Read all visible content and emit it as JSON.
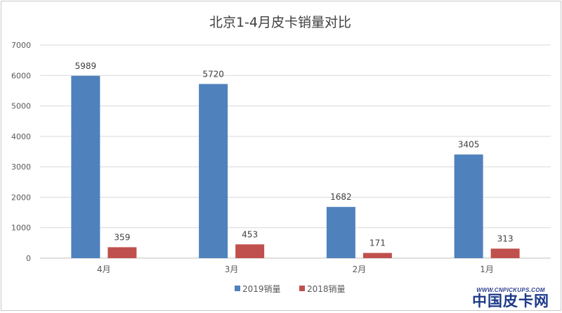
{
  "chart_data": {
    "type": "bar",
    "title": "北京1-4月皮卡销量对比",
    "categories": [
      "4月",
      "3月",
      "2月",
      "1月"
    ],
    "series": [
      {
        "name": "2019销量",
        "color": "#4f81bd",
        "values": [
          5989,
          5720,
          1682,
          3405
        ]
      },
      {
        "name": "2018销量",
        "color": "#c0504d",
        "values": [
          359,
          453,
          171,
          313
        ]
      }
    ],
    "ylim": [
      0,
      7000
    ],
    "yticks": [
      0,
      1000,
      2000,
      3000,
      4000,
      5000,
      6000,
      7000
    ],
    "grid": true,
    "legend": "bottom"
  },
  "watermark": {
    "url": "WWW.CNPICKUPS.COM",
    "name": "中国皮卡网"
  }
}
